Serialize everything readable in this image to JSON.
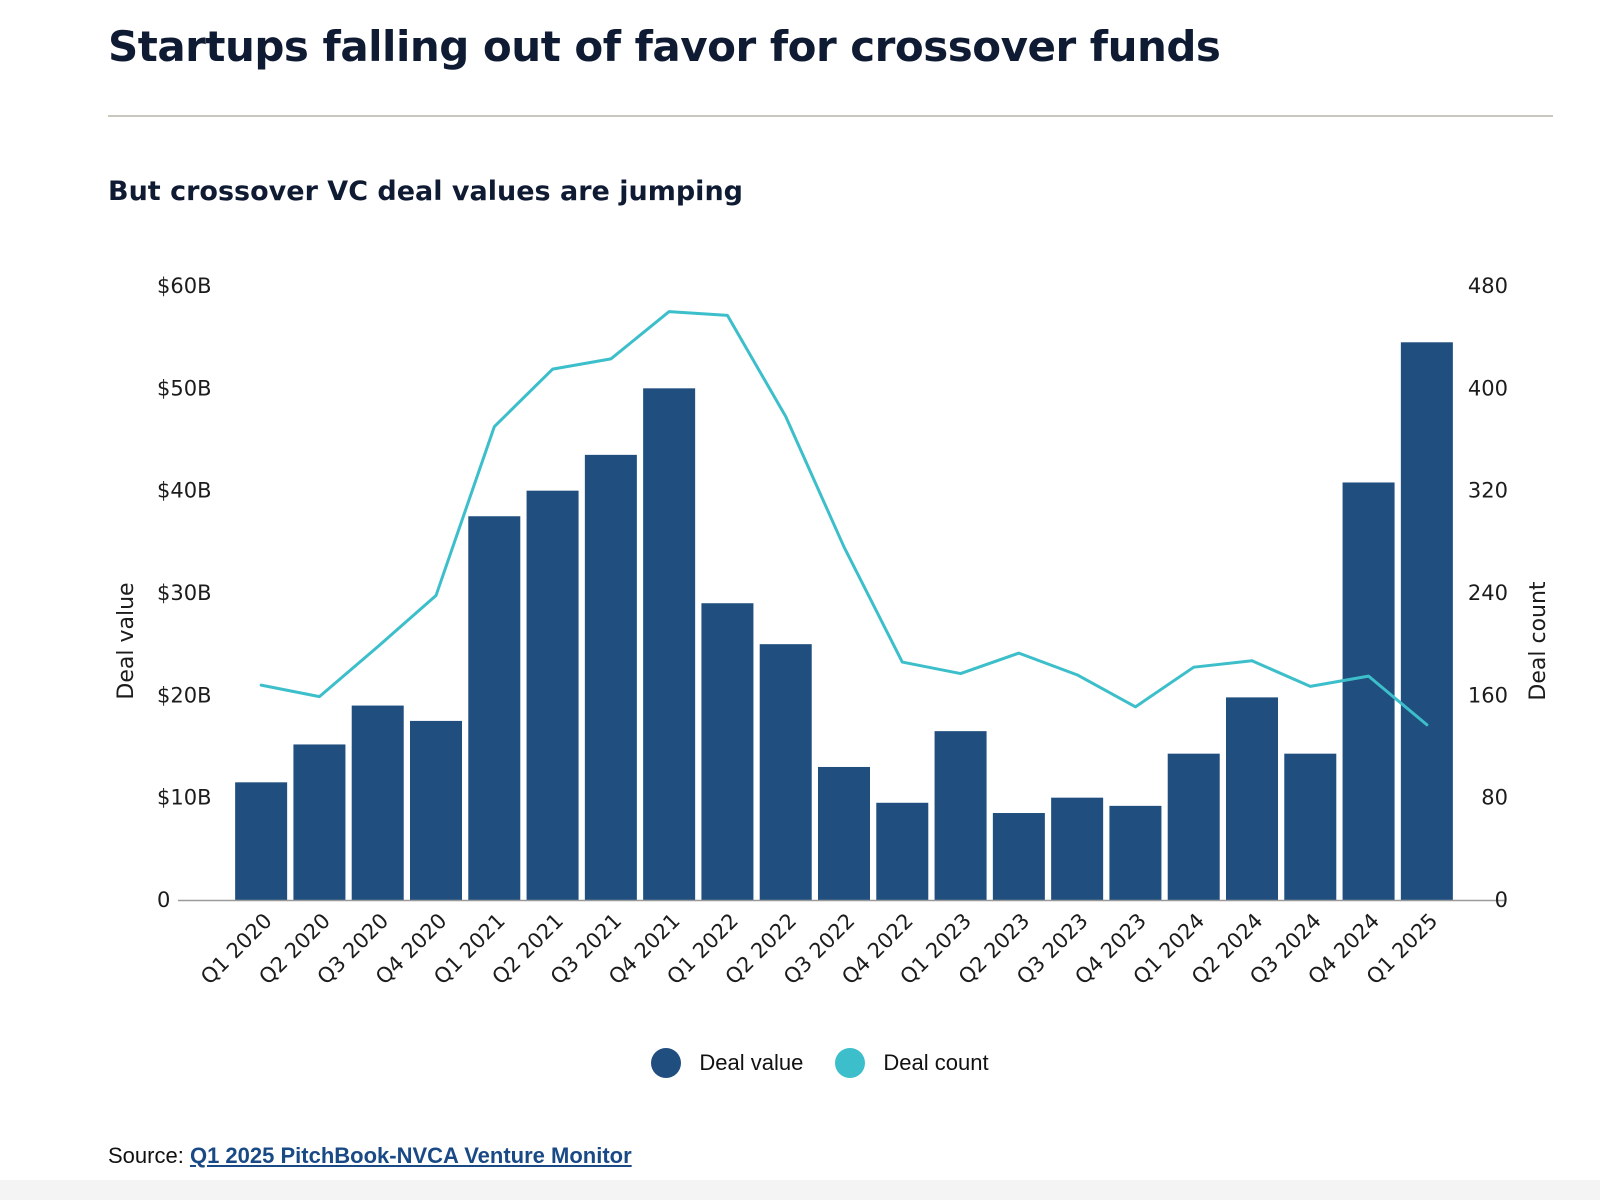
{
  "header": {
    "title": "Startups falling out of favor for crossover funds",
    "subtitle": "But crossover VC deal values are jumping"
  },
  "colors": {
    "bar": "#1f4e7f",
    "line": "#3cbfca",
    "axis": "#9a9a9a",
    "divider": "#c8c8bf"
  },
  "legend": {
    "items": [
      {
        "label": "Deal value",
        "color": "#1f4e7f"
      },
      {
        "label": "Deal count",
        "color": "#3cbfca"
      }
    ]
  },
  "source": {
    "label": "Source:",
    "link_text": "Q1 2025 PitchBook-NVCA Venture Monitor"
  },
  "chart_data": {
    "type": "bar",
    "title": "But crossover VC deal values are jumping",
    "categories": [
      "Q1 2020",
      "Q2 2020",
      "Q3 2020",
      "Q4 2020",
      "Q1 2021",
      "Q2 2021",
      "Q3 2021",
      "Q4 2021",
      "Q1 2022",
      "Q2 2022",
      "Q3 2022",
      "Q4 2022",
      "Q1 2023",
      "Q2 2023",
      "Q3 2023",
      "Q4 2023",
      "Q1 2024",
      "Q2 2024",
      "Q3 2024",
      "Q4 2024",
      "Q1 2025"
    ],
    "ylabel": "Deal value",
    "y2label": "Deal count",
    "ylim": [
      0,
      60
    ],
    "y2lim": [
      0,
      480
    ],
    "y_ticks": [
      "0",
      "$10B",
      "$20B",
      "$30B",
      "$40B",
      "$50B",
      "$60B"
    ],
    "y_tick_values": [
      0,
      10,
      20,
      30,
      40,
      50,
      60
    ],
    "y2_ticks": [
      "0",
      "80",
      "160",
      "240",
      "320",
      "400",
      "480"
    ],
    "y2_tick_values": [
      0,
      80,
      160,
      240,
      320,
      400,
      480
    ],
    "grid": false,
    "legend_position": "bottom-center",
    "series": [
      {
        "name": "Deal value",
        "type": "bar",
        "axis": "left",
        "values": [
          11.5,
          15.2,
          19.0,
          17.5,
          37.5,
          40.0,
          43.5,
          50.0,
          29.0,
          25.0,
          13.0,
          9.5,
          16.5,
          8.5,
          10.0,
          9.2,
          14.3,
          19.8,
          14.3,
          40.8,
          54.5
        ]
      },
      {
        "name": "Deal count",
        "type": "line",
        "axis": "right",
        "values": [
          168,
          159,
          198,
          238,
          370,
          415,
          423,
          460,
          457,
          378,
          276,
          186,
          177,
          193,
          176,
          151,
          182,
          187,
          167,
          175,
          137
        ]
      }
    ]
  }
}
